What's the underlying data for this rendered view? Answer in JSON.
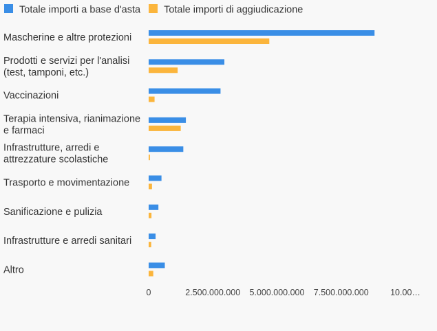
{
  "chart_data": {
    "type": "bar",
    "orientation": "horizontal",
    "categories": [
      [
        "Mascherine e altre protezioni"
      ],
      [
        "Prodotti e servizi per l'analisi",
        "(test, tamponi, etc.)"
      ],
      [
        "Vaccinazioni"
      ],
      [
        "Terapia intensiva, rianimazione",
        "e farmaci"
      ],
      [
        "Infrastrutture, arredi e",
        "attrezzature scolastiche"
      ],
      [
        "Trasporto e movimentazione"
      ],
      [
        "Sanificazione e pulizia"
      ],
      [
        "Infrastrutture e arredi sanitari"
      ],
      [
        "Altro"
      ]
    ],
    "series": [
      {
        "name": "Totale importi a base d'asta",
        "color": "#3a8ee6",
        "values": [
          8800000000,
          2950000000,
          2800000000,
          1450000000,
          1350000000,
          500000000,
          380000000,
          270000000,
          630000000
        ]
      },
      {
        "name": "Totale importi di aggiudicazione",
        "color": "#fbb53c",
        "values": [
          4700000000,
          1130000000,
          230000000,
          1250000000,
          50000000,
          130000000,
          110000000,
          100000000,
          180000000
        ]
      }
    ],
    "x_ticks": [
      "0",
      "2.500.000.000",
      "5.000.000.000",
      "7.500.000.000",
      "10.00…"
    ],
    "xlim": [
      0,
      10000000000
    ],
    "legend_position": "top-left",
    "grid": false
  }
}
